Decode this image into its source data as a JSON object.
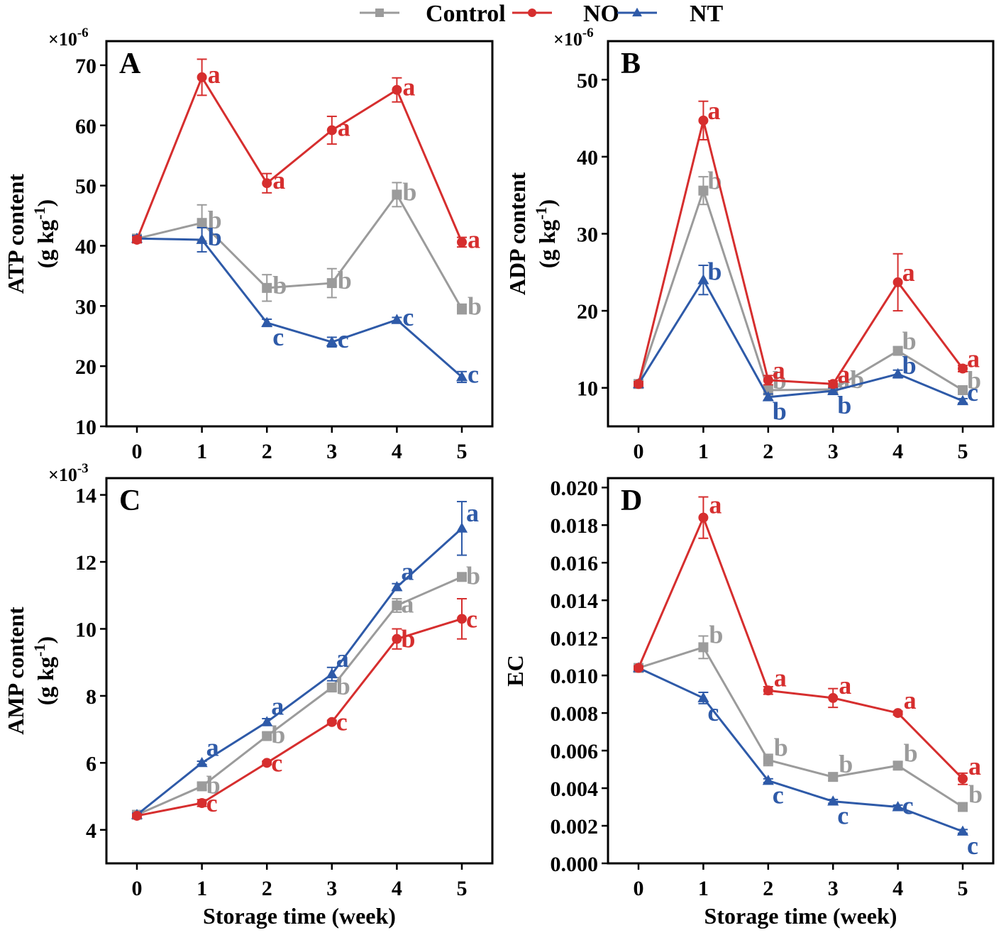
{
  "legend": {
    "items": [
      {
        "label": "Control",
        "color": "#9b9b9b",
        "marker": "square"
      },
      {
        "label": "NO",
        "color": "#d62e2e",
        "marker": "circle"
      },
      {
        "label": "NT",
        "color": "#2e5aa8",
        "marker": "triangle"
      }
    ]
  },
  "chart_data": [
    {
      "panel": "A",
      "type": "line",
      "multiplier": "×10",
      "multiplier_exp": "-6",
      "ylabel": "ATP content",
      "yunit_base": "(g kg",
      "yunit_exp": "-1",
      "yunit_close": ")",
      "xlabel": "",
      "ylim": [
        10,
        74
      ],
      "yticks": [
        10,
        20,
        30,
        40,
        50,
        60,
        70
      ],
      "ytick_labels": [
        "10",
        "20",
        "30",
        "40",
        "50",
        "60",
        "70"
      ],
      "x": [
        0,
        1,
        2,
        3,
        4,
        5
      ],
      "xtick_labels": [
        "0",
        "1",
        "2",
        "3",
        "4",
        "5"
      ],
      "series": [
        {
          "name": "Control",
          "values": [
            41.2,
            43.8,
            33.0,
            33.8,
            48.5,
            29.5
          ],
          "errors": [
            0.5,
            3.0,
            2.2,
            2.4,
            2.0,
            0.8
          ],
          "letters": [
            "",
            "b",
            "b",
            "b",
            "b",
            "b"
          ]
        },
        {
          "name": "NO",
          "values": [
            41.0,
            68.0,
            50.4,
            59.2,
            65.9,
            40.6
          ],
          "errors": [
            0.5,
            3.0,
            1.6,
            2.3,
            2.0,
            0.8
          ],
          "letters": [
            "",
            "a",
            "a",
            "a",
            "a",
            "a"
          ]
        },
        {
          "name": "NT",
          "values": [
            41.2,
            41.0,
            27.2,
            24.0,
            27.7,
            18.2
          ],
          "errors": [
            0.5,
            2.0,
            0.6,
            0.8,
            0.4,
            0.9
          ],
          "letters": [
            "",
            "b",
            "c",
            "c",
            "c",
            "c"
          ]
        }
      ]
    },
    {
      "panel": "B",
      "type": "line",
      "multiplier": "×10",
      "multiplier_exp": "-6",
      "ylabel": "ADP content",
      "yunit_base": "(g kg",
      "yunit_exp": "-1",
      "yunit_close": ")",
      "xlabel": "",
      "ylim": [
        5,
        55
      ],
      "yticks": [
        10,
        20,
        30,
        40,
        50
      ],
      "ytick_labels": [
        "10",
        "20",
        "30",
        "40",
        "50"
      ],
      "x": [
        0,
        1,
        2,
        3,
        4,
        5
      ],
      "xtick_labels": [
        "0",
        "1",
        "2",
        "3",
        "4",
        "5"
      ],
      "series": [
        {
          "name": "Control",
          "values": [
            10.5,
            35.6,
            9.7,
            9.8,
            14.8,
            9.7
          ],
          "errors": [
            0.3,
            1.8,
            0.6,
            0.5,
            0.5,
            0.3
          ],
          "letters": [
            "",
            "b",
            "b",
            "ab",
            "b",
            "b"
          ]
        },
        {
          "name": "NO",
          "values": [
            10.5,
            44.7,
            11.0,
            10.5,
            23.7,
            12.5
          ],
          "errors": [
            0.3,
            2.5,
            0.6,
            0.4,
            3.7,
            0.4
          ],
          "letters": [
            "",
            "a",
            "a",
            "a",
            "a",
            "a"
          ]
        },
        {
          "name": "NT",
          "values": [
            10.5,
            24.0,
            8.8,
            9.6,
            11.8,
            8.3
          ],
          "errors": [
            0.3,
            1.9,
            0.4,
            0.4,
            0.5,
            0.3
          ],
          "letters": [
            "",
            "b",
            "b",
            "b",
            "b",
            "c"
          ]
        }
      ]
    },
    {
      "panel": "C",
      "type": "line",
      "multiplier": "×10",
      "multiplier_exp": "-3",
      "ylabel": "AMP content",
      "yunit_base": "(g kg",
      "yunit_exp": "-1",
      "yunit_close": ")",
      "xlabel": "Storage time (week)",
      "ylim": [
        3,
        14.5
      ],
      "yticks": [
        4,
        6,
        8,
        10,
        12,
        14
      ],
      "ytick_labels": [
        "4",
        "6",
        "8",
        "10",
        "12",
        "14"
      ],
      "x": [
        0,
        1,
        2,
        3,
        4,
        5
      ],
      "xtick_labels": [
        "0",
        "1",
        "2",
        "3",
        "4",
        "5"
      ],
      "series": [
        {
          "name": "Control",
          "values": [
            4.45,
            5.3,
            6.8,
            8.25,
            10.7,
            11.55
          ],
          "errors": [
            0.05,
            0.1,
            0.1,
            0.1,
            0.2,
            0.1
          ],
          "letters": [
            "",
            "b",
            "b",
            "b",
            "a",
            "b"
          ]
        },
        {
          "name": "NO",
          "values": [
            4.42,
            4.8,
            6.0,
            7.22,
            9.7,
            10.3
          ],
          "errors": [
            0.05,
            0.1,
            0.05,
            0.05,
            0.3,
            0.6
          ],
          "letters": [
            "",
            "c",
            "c",
            "c",
            "b",
            "c"
          ]
        },
        {
          "name": "NT",
          "values": [
            4.45,
            6.0,
            7.22,
            8.65,
            11.25,
            13.0
          ],
          "errors": [
            0.05,
            0.05,
            0.1,
            0.2,
            0.1,
            0.8
          ],
          "letters": [
            "",
            "a",
            "a",
            "a",
            "a",
            "a"
          ]
        }
      ]
    },
    {
      "panel": "D",
      "type": "line",
      "multiplier": "",
      "multiplier_exp": "",
      "ylabel": "EC",
      "yunit_base": "",
      "yunit_exp": "",
      "yunit_close": "",
      "xlabel": "Storage time (week)",
      "ylim": [
        0.0,
        0.0205
      ],
      "yticks": [
        0.0,
        0.002,
        0.004,
        0.006,
        0.008,
        0.01,
        0.012,
        0.014,
        0.016,
        0.018,
        0.02
      ],
      "ytick_labels": [
        "0.000",
        "0.002",
        "0.004",
        "0.006",
        "0.008",
        "0.010",
        "0.012",
        "0.014",
        "0.016",
        "0.018",
        "0.020"
      ],
      "x": [
        0,
        1,
        2,
        3,
        4,
        5
      ],
      "xtick_labels": [
        "0",
        "1",
        "2",
        "3",
        "4",
        "5"
      ],
      "series": [
        {
          "name": "Control",
          "values": [
            0.0104,
            0.0115,
            0.0055,
            0.0046,
            0.0052,
            0.003
          ],
          "errors": [
            0.0001,
            0.0006,
            0.0003,
            0.0002,
            0.0002,
            0.0001
          ],
          "letters": [
            "",
            "b",
            "b",
            "b",
            "b",
            "b"
          ]
        },
        {
          "name": "NO",
          "values": [
            0.0104,
            0.0184,
            0.0092,
            0.0088,
            0.008,
            0.0045
          ],
          "errors": [
            0.0001,
            0.0011,
            0.0002,
            0.0005,
            0.0001,
            0.0003
          ],
          "letters": [
            "",
            "a",
            "a",
            "a",
            "a",
            "a"
          ]
        },
        {
          "name": "NT",
          "values": [
            0.0104,
            0.0088,
            0.0044,
            0.0033,
            0.003,
            0.0017
          ],
          "errors": [
            0.0001,
            0.0003,
            0.0001,
            0.0001,
            0.0001,
            0.0001
          ],
          "letters": [
            "",
            "c",
            "c",
            "c",
            "c",
            "c"
          ]
        }
      ]
    }
  ]
}
